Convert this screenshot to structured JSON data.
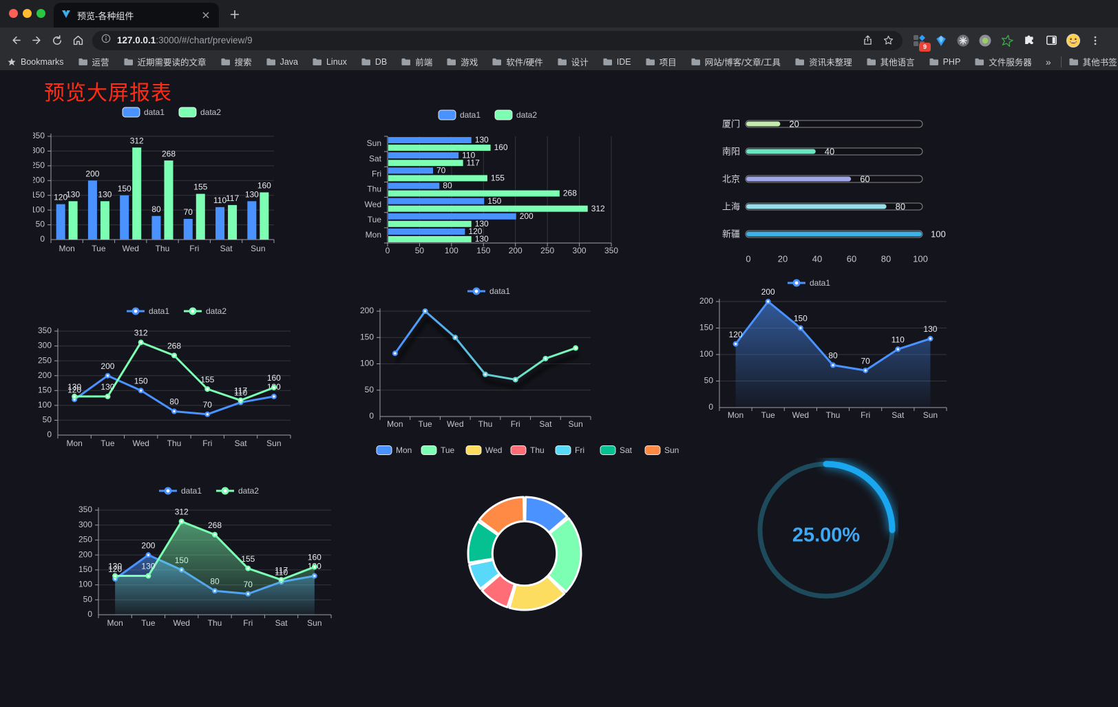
{
  "browser": {
    "tab": {
      "title": "预览-各种组件"
    },
    "url": {
      "host": "127.0.0.1",
      "rest": ":3000/#/chart/preview/9"
    },
    "extensions_badge": "9",
    "bookmarks_bar": {
      "label": "Bookmarks",
      "items": [
        "运营",
        "近期需要读的文章",
        "搜索",
        "Java",
        "Linux",
        "DB",
        "前端",
        "游戏",
        "软件/硬件",
        "设计",
        "IDE",
        "项目",
        "网站/博客/文章/工具",
        "资讯未整理",
        "其他语言",
        "PHP",
        "文件服务器"
      ],
      "overflow": "»",
      "other": "其他书签"
    }
  },
  "page": {
    "title": "预览大屏报表"
  },
  "chart_data": [
    {
      "id": "bar",
      "type": "bar",
      "categories": [
        "Mon",
        "Tue",
        "Wed",
        "Thu",
        "Fri",
        "Sat",
        "Sun"
      ],
      "series": [
        {
          "name": "data1",
          "color": "#4992ff",
          "values": [
            120,
            200,
            150,
            80,
            70,
            110,
            130
          ]
        },
        {
          "name": "data2",
          "color": "#7cffb2",
          "values": [
            130,
            130,
            312,
            268,
            155,
            117,
            160
          ]
        }
      ],
      "ylim": [
        0,
        350
      ],
      "ystep": 50,
      "legend_position": "top",
      "value_labels": true,
      "grid": true
    },
    {
      "id": "hbar",
      "type": "bar-horizontal",
      "categories": [
        "Mon",
        "Tue",
        "Wed",
        "Thu",
        "Fri",
        "Sat",
        "Sun"
      ],
      "series": [
        {
          "name": "data1",
          "color": "#4992ff",
          "values": [
            120,
            200,
            150,
            80,
            70,
            110,
            130
          ]
        },
        {
          "name": "data2",
          "color": "#7cffb2",
          "values": [
            130,
            130,
            312,
            268,
            155,
            117,
            160
          ]
        }
      ],
      "xlim": [
        0,
        350
      ],
      "xstep": 50,
      "legend_position": "top",
      "value_labels": true,
      "grid": true
    },
    {
      "id": "progress",
      "type": "progress-bars",
      "xlim": [
        0,
        100
      ],
      "xticks": [
        0,
        20,
        40,
        60,
        80,
        100
      ],
      "rows": [
        {
          "label": "厦门",
          "value": 20,
          "color": "#c4ebad"
        },
        {
          "label": "南阳",
          "value": 40,
          "color": "#6be6c1"
        },
        {
          "label": "北京",
          "value": 60,
          "color": "#a0a7e6"
        },
        {
          "label": "上海",
          "value": 80,
          "color": "#96dee8"
        },
        {
          "label": "新疆",
          "value": 100,
          "color": "#3fb1e3"
        }
      ]
    },
    {
      "id": "line2",
      "type": "line",
      "categories": [
        "Mon",
        "Tue",
        "Wed",
        "Thu",
        "Fri",
        "Sat",
        "Sun"
      ],
      "series": [
        {
          "name": "data1",
          "color": "#4992ff",
          "values": [
            120,
            200,
            150,
            80,
            70,
            110,
            130
          ]
        },
        {
          "name": "data2",
          "color": "#7cffb2",
          "values": [
            130,
            130,
            312,
            268,
            155,
            117,
            160
          ]
        }
      ],
      "ylim": [
        0,
        350
      ],
      "ystep": 50,
      "legend_position": "top",
      "value_labels": true,
      "grid": true
    },
    {
      "id": "shadowline",
      "type": "line",
      "categories": [
        "Mon",
        "Tue",
        "Wed",
        "Thu",
        "Fri",
        "Sat",
        "Sun"
      ],
      "series": [
        {
          "name": "data1",
          "gradient": [
            "#4992ff",
            "#7cffb2"
          ],
          "values": [
            120,
            200,
            150,
            80,
            70,
            110,
            130
          ]
        }
      ],
      "ylim": [
        0,
        200
      ],
      "ystep": 50,
      "legend_position": "top",
      "value_labels": false,
      "shadow": true,
      "grid": true
    },
    {
      "id": "area1",
      "type": "area",
      "categories": [
        "Mon",
        "Tue",
        "Wed",
        "Thu",
        "Fri",
        "Sat",
        "Sun"
      ],
      "series": [
        {
          "name": "data1",
          "color": "#4992ff",
          "values": [
            120,
            200,
            150,
            80,
            70,
            110,
            130
          ]
        }
      ],
      "ylim": [
        0,
        200
      ],
      "ystep": 50,
      "legend_position": "top",
      "value_labels": true,
      "grid": true
    },
    {
      "id": "area2",
      "type": "area",
      "categories": [
        "Mon",
        "Tue",
        "Wed",
        "Thu",
        "Fri",
        "Sat",
        "Sun"
      ],
      "series": [
        {
          "name": "data1",
          "color": "#4992ff",
          "values": [
            120,
            200,
            150,
            80,
            70,
            110,
            130
          ]
        },
        {
          "name": "data2",
          "color": "#7cffb2",
          "values": [
            130,
            130,
            312,
            268,
            155,
            117,
            160
          ]
        }
      ],
      "ylim": [
        0,
        350
      ],
      "ystep": 50,
      "legend_position": "top",
      "value_labels": true,
      "grid": true
    },
    {
      "id": "donut",
      "type": "pie",
      "inner_radius_ratio": 0.57,
      "legend_position": "top",
      "slices": [
        {
          "label": "Mon",
          "value": 120,
          "color": "#4992ff"
        },
        {
          "label": "Tue",
          "value": 200,
          "color": "#7cffb2"
        },
        {
          "label": "Wed",
          "value": 150,
          "color": "#fddd60"
        },
        {
          "label": "Thu",
          "value": 80,
          "color": "#ff6e76"
        },
        {
          "label": "Fri",
          "value": 70,
          "color": "#58d9f9"
        },
        {
          "label": "Sat",
          "value": 110,
          "color": "#05c091"
        },
        {
          "label": "Sun",
          "value": 130,
          "color": "#ff8a45"
        }
      ]
    },
    {
      "id": "gauge",
      "type": "gauge",
      "value": 25,
      "max": 100,
      "display": "25.00%",
      "color": "#1aa7ef",
      "track_color": "#1d4b5c",
      "text_color": "#3da8f5"
    }
  ]
}
